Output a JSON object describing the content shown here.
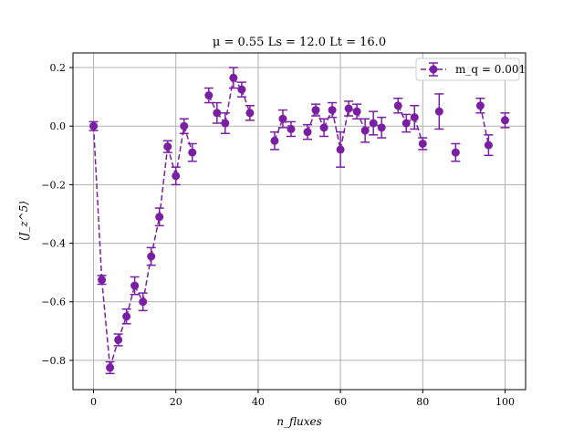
{
  "chart_data": {
    "type": "scatter",
    "title": "μ = 0.55 Ls = 12.0 Lt = 16.0",
    "xlabel": "n_fluxes",
    "ylabel": "⟨J_z^5⟩",
    "xlim": [
      -5,
      105
    ],
    "ylim": [
      -0.9,
      0.25
    ],
    "xticks": [
      0,
      20,
      40,
      60,
      80,
      100
    ],
    "yticks": [
      -0.8,
      -0.6,
      -0.4,
      -0.2,
      0.0,
      0.2
    ],
    "xtick_labels": [
      "0",
      "20",
      "40",
      "60",
      "80",
      "100"
    ],
    "ytick_labels": [
      "−0.8",
      "−0.6",
      "−0.4",
      "−0.2",
      "0.0",
      "0.2"
    ],
    "grid": true,
    "legend_position": "top-right",
    "series": [
      {
        "name": "m_q = 0.001",
        "color": "#7b1fa2",
        "line_style": "dashed",
        "marker": "circle",
        "x": [
          0,
          2,
          4,
          6,
          8,
          10,
          12,
          14,
          16,
          18,
          20,
          22,
          24,
          28,
          30,
          32,
          34,
          36,
          38,
          44,
          46,
          48,
          52,
          54,
          56,
          58,
          60,
          62,
          64,
          66,
          68,
          70,
          74,
          76,
          78,
          80,
          84,
          88,
          94,
          96,
          100
        ],
        "y": [
          0.0,
          -0.525,
          -0.825,
          -0.73,
          -0.65,
          -0.545,
          -0.6,
          -0.445,
          -0.31,
          -0.07,
          -0.17,
          0.0,
          -0.09,
          0.105,
          0.045,
          0.01,
          0.165,
          0.125,
          0.045,
          -0.05,
          0.025,
          -0.01,
          -0.02,
          0.055,
          -0.005,
          0.055,
          -0.08,
          0.06,
          0.05,
          -0.015,
          0.01,
          -0.005,
          0.07,
          0.01,
          0.03,
          -0.06,
          0.05,
          -0.09,
          0.07,
          -0.065,
          0.02
        ],
        "err": [
          0.015,
          0.015,
          0.02,
          0.02,
          0.025,
          0.03,
          0.03,
          0.03,
          0.03,
          0.02,
          0.03,
          0.025,
          0.03,
          0.025,
          0.035,
          0.035,
          0.035,
          0.025,
          0.025,
          0.03,
          0.03,
          0.025,
          0.025,
          0.02,
          0.03,
          0.025,
          0.06,
          0.025,
          0.025,
          0.04,
          0.04,
          0.035,
          0.025,
          0.03,
          0.04,
          0.02,
          0.06,
          0.03,
          0.025,
          0.035,
          0.025
        ],
        "connected": [
          true,
          true,
          true,
          true,
          true,
          true,
          true,
          true,
          true,
          true,
          true,
          true,
          true,
          false,
          true,
          true,
          true,
          true,
          true,
          false,
          true,
          true,
          false,
          true,
          true,
          true,
          true,
          true,
          true,
          true,
          true,
          true,
          false,
          true,
          true,
          true,
          false,
          false,
          false,
          true,
          false
        ]
      }
    ]
  }
}
